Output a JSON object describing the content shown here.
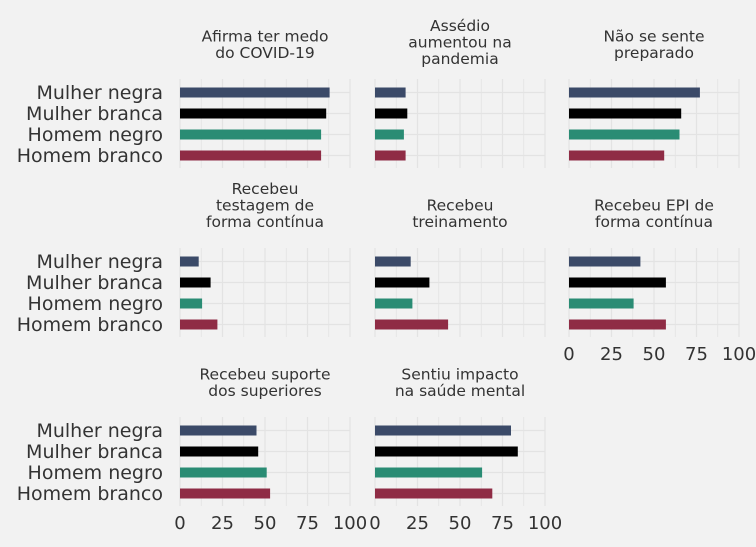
{
  "chart_data": {
    "type": "bar",
    "orientation": "horizontal",
    "categories": [
      "Mulher negra",
      "Mulher branca",
      "Homem negro",
      "Homem branco"
    ],
    "series_colors": {
      "Mulher negra": "#3b4a68",
      "Mulher branca": "#000000",
      "Homem negro": "#2a8c74",
      "Homem branco": "#8f2c45"
    },
    "xlim": [
      0,
      100
    ],
    "xticks": [
      "0",
      "25",
      "50",
      "75",
      "100"
    ],
    "grid": true,
    "legend": "none",
    "panels": [
      {
        "title": [
          "Afirma ter medo",
          "do COVID-19"
        ],
        "values": [
          88,
          86,
          83,
          83
        ]
      },
      {
        "title": [
          "Assédio",
          "aumentou na",
          "pandemia"
        ],
        "values": [
          18,
          19,
          17,
          18
        ]
      },
      {
        "title": [
          "Não se sente",
          "preparado"
        ],
        "values": [
          77,
          66,
          65,
          56
        ]
      },
      {
        "title": [
          "Recebeu",
          "testagem de",
          "forma contínua"
        ],
        "values": [
          11,
          18,
          13,
          22
        ]
      },
      {
        "title": [
          "Recebeu",
          "treinamento"
        ],
        "values": [
          21,
          32,
          22,
          43
        ]
      },
      {
        "title": [
          "Recebeu EPI de",
          "forma contínua"
        ],
        "values": [
          42,
          57,
          38,
          57
        ]
      },
      {
        "title": [
          "Recebeu suporte",
          "dos superiores"
        ],
        "values": [
          45,
          46,
          51,
          53
        ]
      },
      {
        "title": [
          "Sentiu impacto",
          "na saúde mental"
        ],
        "values": [
          80,
          84,
          63,
          69
        ]
      }
    ]
  }
}
